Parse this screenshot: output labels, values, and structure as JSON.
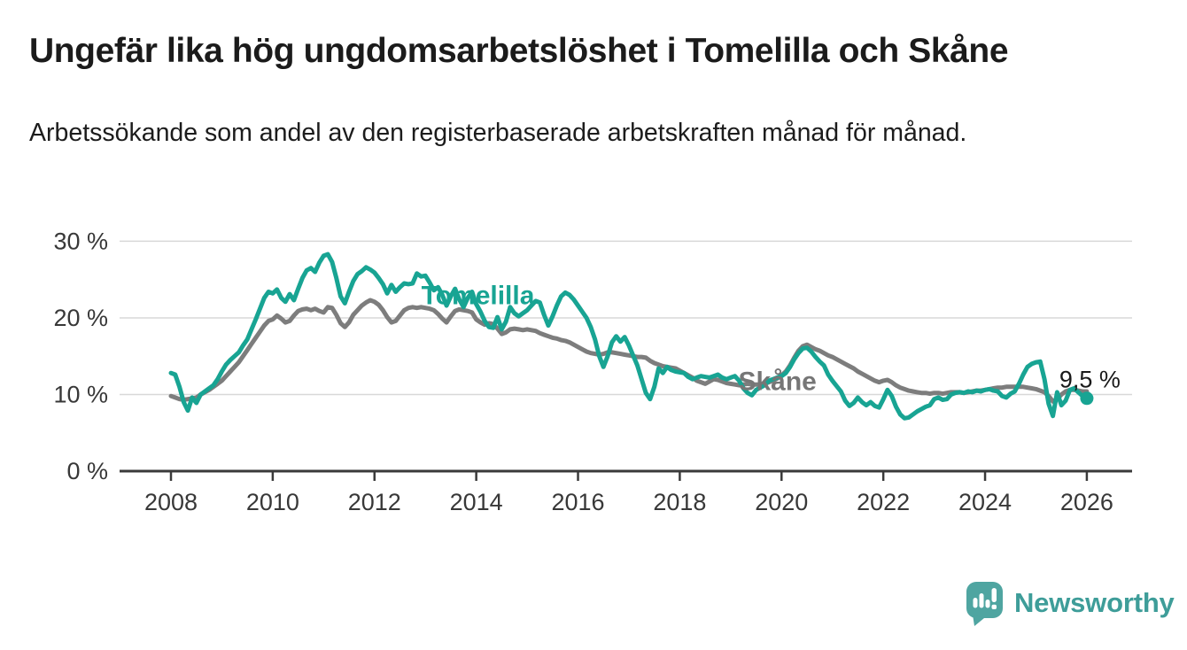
{
  "header": {
    "title": "Ungefär lika hög ungdomsarbetslöshet i Tomelilla och Skåne",
    "subtitle": "Arbetssökande som andel av den registerbaserade arbetskraften månad för månad."
  },
  "branding": {
    "logo_text": "Newsworthy",
    "logo_color": "#3e9d99",
    "logo_icon": "chart-speech-bubble-icon",
    "logo_icon_color": "#4fa5a1"
  },
  "chart_data": {
    "type": "line",
    "unit": "%",
    "x_start": 2008.0,
    "x_step_months": 1,
    "x_ticks": [
      2008,
      2010,
      2012,
      2014,
      2016,
      2018,
      2020,
      2022,
      2024,
      2026
    ],
    "y_ticks": [
      {
        "value": 0,
        "label": "0 %"
      },
      {
        "value": 10,
        "label": "10 %"
      },
      {
        "value": 20,
        "label": "20 %"
      },
      {
        "value": 30,
        "label": "30 %"
      }
    ],
    "ylim": [
      0,
      32
    ],
    "xlim": [
      2007,
      2026.9
    ],
    "grid": "horizontal",
    "legend_position": "inline-labels",
    "colors": {
      "tomelilla": "#18a493",
      "skane": "#7d7d7d",
      "grid": "#d8d8d8",
      "axis": "#3a3a3a",
      "tick_text": "#383838"
    },
    "series": [
      {
        "name": "Tomelilla",
        "color": "#18a493",
        "values": [
          12.8,
          12.6,
          11.0,
          9.0,
          7.9,
          9.6,
          8.9,
          10.0,
          10.4,
          10.8,
          11.2,
          12.0,
          13.0,
          13.9,
          14.5,
          15.0,
          15.5,
          16.4,
          17.2,
          18.5,
          19.8,
          21.2,
          22.6,
          23.4,
          23.2,
          23.7,
          22.6,
          22.1,
          23.1,
          22.3,
          23.8,
          25.2,
          26.2,
          26.5,
          26.0,
          27.2,
          28.1,
          28.3,
          27.3,
          25.2,
          22.8,
          21.9,
          23.4,
          24.8,
          25.7,
          26.1,
          26.6,
          26.3,
          25.9,
          25.2,
          24.4,
          23.2,
          24.3,
          23.4,
          24.0,
          24.5,
          24.4,
          24.5,
          25.8,
          25.4,
          25.5,
          24.6,
          23.6,
          24.0,
          23.0,
          21.6,
          22.8,
          23.8,
          22.4,
          21.4,
          22.6,
          23.4,
          21.8,
          20.8,
          19.6,
          18.8,
          18.7,
          20.1,
          18.5,
          19.5,
          21.4,
          20.6,
          20.2,
          20.6,
          21.0,
          21.6,
          22.2,
          22.0,
          20.4,
          19.0,
          20.2,
          21.6,
          22.8,
          23.3,
          23.0,
          22.4,
          21.6,
          20.8,
          20.0,
          18.8,
          17.2,
          15.0,
          13.6,
          15.0,
          16.8,
          17.6,
          16.9,
          17.5,
          16.4,
          15.1,
          13.8,
          12.0,
          10.2,
          9.4,
          11.0,
          13.4,
          12.8,
          13.6,
          13.2,
          13.0,
          12.9,
          12.8,
          12.3,
          12.0,
          12.2,
          12.4,
          12.3,
          12.2,
          12.4,
          12.6,
          12.2,
          12.0,
          12.2,
          12.4,
          11.8,
          10.8,
          10.2,
          9.9,
          10.6,
          10.9,
          11.2,
          11.8,
          12.0,
          12.2,
          12.4,
          12.8,
          13.6,
          14.6,
          15.4,
          16.0,
          16.1,
          15.6,
          14.9,
          14.3,
          13.8,
          12.6,
          11.8,
          11.1,
          10.4,
          9.2,
          8.5,
          8.9,
          9.6,
          9.0,
          8.6,
          9.0,
          8.5,
          8.3,
          9.4,
          10.6,
          9.8,
          8.4,
          7.4,
          6.9,
          7.0,
          7.4,
          7.8,
          8.1,
          8.4,
          8.6,
          9.4,
          9.6,
          9.3,
          9.4,
          10.0,
          10.2,
          10.3,
          10.2,
          10.4,
          10.3,
          10.5,
          10.4,
          10.6,
          10.7,
          10.5,
          10.4,
          9.8,
          9.6,
          10.1,
          10.4,
          11.4,
          12.6,
          13.6,
          14.0,
          14.2,
          14.3,
          12.0,
          8.8,
          7.2,
          10.3,
          8.6,
          9.2,
          10.6,
          10.8,
          10.3,
          9.8,
          9.5
        ]
      },
      {
        "name": "Skåne",
        "color": "#7d7d7d",
        "values": [
          9.8,
          9.6,
          9.4,
          9.3,
          9.4,
          9.5,
          9.6,
          10.0,
          10.3,
          10.6,
          11.0,
          11.4,
          11.8,
          12.4,
          13.0,
          13.6,
          14.2,
          15.0,
          15.8,
          16.6,
          17.4,
          18.2,
          19.0,
          19.6,
          19.8,
          20.3,
          19.9,
          19.4,
          19.6,
          20.3,
          20.9,
          21.1,
          21.2,
          21.0,
          21.2,
          20.9,
          20.7,
          21.4,
          21.3,
          20.4,
          19.3,
          18.8,
          19.4,
          20.4,
          21.0,
          21.6,
          22.0,
          22.3,
          22.1,
          21.7,
          21.0,
          20.1,
          19.4,
          19.6,
          20.3,
          21.0,
          21.3,
          21.4,
          21.3,
          21.4,
          21.3,
          21.2,
          21.0,
          20.5,
          19.9,
          19.4,
          20.2,
          20.9,
          21.1,
          21.0,
          20.9,
          20.7,
          19.8,
          19.4,
          19.1,
          19.3,
          19.2,
          18.6,
          17.9,
          18.1,
          18.5,
          18.6,
          18.5,
          18.4,
          18.5,
          18.4,
          18.3,
          18.0,
          17.8,
          17.6,
          17.4,
          17.3,
          17.1,
          17.0,
          16.8,
          16.5,
          16.2,
          15.9,
          15.6,
          15.4,
          15.3,
          15.2,
          15.3,
          15.5,
          15.5,
          15.4,
          15.3,
          15.2,
          15.1,
          15.0,
          14.9,
          14.9,
          14.8,
          14.4,
          14.1,
          13.9,
          13.7,
          13.6,
          13.5,
          13.4,
          13.1,
          12.8,
          12.5,
          12.2,
          11.8,
          11.6,
          11.4,
          11.7,
          12.0,
          11.9,
          11.7,
          11.5,
          11.4,
          11.3,
          11.2,
          11.3,
          11.4,
          11.3,
          11.3,
          11.3,
          11.4,
          11.6,
          11.8,
          12.1,
          12.5,
          13.0,
          13.8,
          14.8,
          15.7,
          16.3,
          16.5,
          16.2,
          15.9,
          15.7,
          15.4,
          15.1,
          14.9,
          14.6,
          14.3,
          14.0,
          13.7,
          13.4,
          13.0,
          12.7,
          12.4,
          12.1,
          11.8,
          11.6,
          11.8,
          11.9,
          11.6,
          11.2,
          10.9,
          10.7,
          10.5,
          10.4,
          10.3,
          10.2,
          10.2,
          10.1,
          10.2,
          10.2,
          10.1,
          10.2,
          10.3,
          10.3,
          10.3,
          10.2,
          10.3,
          10.4,
          10.5,
          10.5,
          10.6,
          10.7,
          10.8,
          10.9,
          10.9,
          11.0,
          11.0,
          11.0,
          11.0,
          11.0,
          10.9,
          10.8,
          10.7,
          10.5,
          10.3,
          9.8,
          9.1,
          9.4,
          10.0,
          10.4,
          10.6,
          10.6,
          10.5,
          10.4,
          10.4
        ]
      }
    ],
    "annotations": [
      {
        "id": "tomelilla-label",
        "text": "Tomelilla",
        "x": 2012.92,
        "y": 21.8,
        "color": "#18a493",
        "weight": "bold",
        "size": 30
      },
      {
        "id": "skane-label",
        "text": "Skåne",
        "x": 2019.15,
        "y": 10.6,
        "color": "#767676",
        "weight": "bold",
        "size": 30
      },
      {
        "id": "end-value-label",
        "text": "9,5 %",
        "x": 2025.46,
        "y": 10.9,
        "color": "#1a1a1a",
        "weight": "normal",
        "size": 27
      }
    ],
    "end_dot": {
      "x": 2026.0,
      "y": 9.5,
      "color": "#18a493",
      "radius": 7.5
    }
  }
}
